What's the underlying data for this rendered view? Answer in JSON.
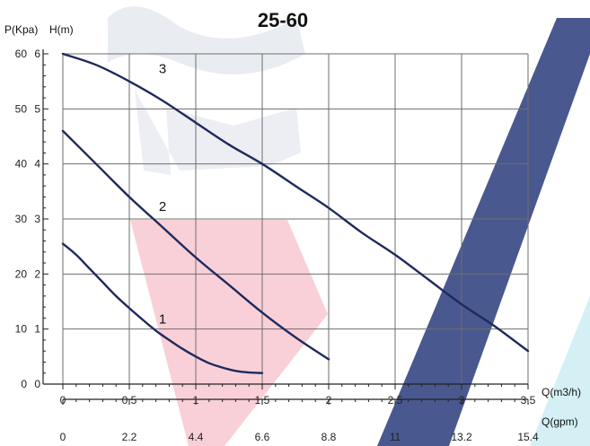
{
  "chart_data": {
    "type": "line",
    "title": "25-60",
    "grid": true,
    "y_left_label": "P(Kpa)",
    "y_right_label": "H(m)",
    "y_kpa_ticks": [
      "0",
      "10",
      "20",
      "30",
      "40",
      "50",
      "60"
    ],
    "y_m_ticks": [
      "0",
      "1",
      "2",
      "3",
      "4",
      "5",
      "6"
    ],
    "x_primary_label": "Q(m3/h)",
    "x_primary_ticks": [
      "0",
      "0.5",
      "1",
      "1.5",
      "2",
      "2.5",
      "3",
      "3.5"
    ],
    "x_secondary_label": "Q(gpm)",
    "x_secondary_ticks": [
      "0",
      "2.2",
      "4.4",
      "6.6",
      "8.8",
      "11",
      "13.2",
      "15.4"
    ],
    "xlim": [
      0,
      3.5
    ],
    "ylim": [
      0,
      6
    ],
    "series": [
      {
        "name": "1",
        "x": [
          0,
          0.1,
          0.2,
          0.3,
          0.4,
          0.5,
          0.6,
          0.7,
          0.8,
          0.9,
          1.0,
          1.1,
          1.2,
          1.3,
          1.4,
          1.5
        ],
        "y": [
          2.55,
          2.35,
          2.1,
          1.85,
          1.6,
          1.38,
          1.17,
          0.97,
          0.8,
          0.64,
          0.5,
          0.38,
          0.3,
          0.24,
          0.21,
          0.2
        ]
      },
      {
        "name": "2",
        "x": [
          0,
          0.25,
          0.5,
          0.75,
          1.0,
          1.25,
          1.5,
          1.75,
          2.0
        ],
        "y": [
          4.6,
          4.0,
          3.4,
          2.85,
          2.3,
          1.8,
          1.3,
          0.85,
          0.45
        ]
      },
      {
        "name": "3",
        "x": [
          0,
          0.25,
          0.5,
          0.75,
          1.0,
          1.25,
          1.5,
          1.75,
          2.0,
          2.25,
          2.5,
          2.75,
          3.0,
          3.25,
          3.5
        ],
        "y": [
          6.0,
          5.8,
          5.5,
          5.15,
          4.75,
          4.35,
          4.0,
          3.6,
          3.2,
          2.75,
          2.35,
          1.9,
          1.45,
          1.05,
          0.6
        ]
      }
    ]
  },
  "colors": {
    "curve": "#1f2a5c",
    "grid": "#6e6e6e",
    "axis": "#222222",
    "watermark_pink": "#f4aab8",
    "watermark_navy": "#3a4a86",
    "watermark_cyan": "#cfeef3",
    "watermark_gray": "#e4e7ee"
  }
}
